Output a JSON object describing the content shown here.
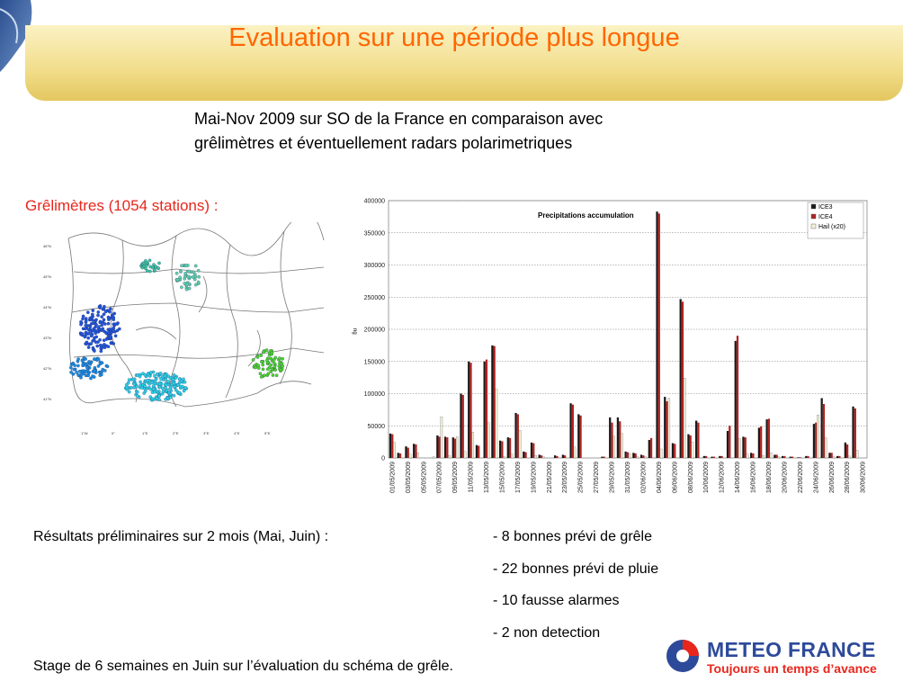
{
  "slide": {
    "title": "Evaluation sur une période plus longue",
    "subtitle_line1": "Mai-Nov 2009 sur SO de la France en comparaison avec",
    "subtitle_line2": "grêlimètres et éventuellement radars polarimetriques",
    "stations_label": "Grêlimètres (1054 stations) :",
    "results_label": "Résultats préliminaires sur 2 mois (Mai, Juin) :",
    "results": [
      "- 8 bonnes prévi de grêle",
      "- 22 bonnes prévi de pluie",
      "- 10 fausse alarmes",
      "- 2 non detection"
    ],
    "stage_text": "Stage de 6 semaines en Juin sur l’évaluation du schéma de grêle."
  },
  "logo": {
    "name": "METEO FRANCE",
    "tagline": "Toujours un temps d’avance",
    "colors": {
      "blue": "#2d4a9a",
      "red": "#e8261c"
    }
  },
  "map": {
    "lat_labels": [
      "46°N",
      "45°N",
      "44°N",
      "43°N",
      "42°N",
      "41°N"
    ],
    "lon_labels": [
      "1°W",
      "0°",
      "1°E",
      "2°E",
      "3°E",
      "4°E",
      "5°E"
    ],
    "clusters": [
      {
        "name": "north",
        "color": "#3cc8a0"
      },
      {
        "name": "northeast",
        "color": "#5fd4a8"
      },
      {
        "name": "west",
        "color": "#1f56d8"
      },
      {
        "name": "southwest",
        "color": "#1a8ee0"
      },
      {
        "name": "south",
        "color": "#29d3e6"
      },
      {
        "name": "east",
        "color": "#4cd62a"
      }
    ]
  },
  "chart_data": {
    "type": "bar",
    "title": "Precipitations accumulation",
    "ylabel": "ng",
    "ylim": [
      0,
      400000
    ],
    "yticks": [
      0,
      50000,
      100000,
      150000,
      200000,
      250000,
      300000,
      350000,
      400000
    ],
    "legend_position": "top-right",
    "dates": [
      "01/05/2009",
      "02/05/2009",
      "03/05/2009",
      "04/05/2009",
      "05/05/2009",
      "06/05/2009",
      "07/05/2009",
      "08/05/2009",
      "09/05/2009",
      "10/05/2009",
      "11/05/2009",
      "12/05/2009",
      "13/05/2009",
      "14/05/2009",
      "15/05/2009",
      "16/05/2009",
      "17/05/2009",
      "18/05/2009",
      "19/05/2009",
      "20/05/2009",
      "21/05/2009",
      "22/05/2009",
      "23/05/2009",
      "24/05/2009",
      "25/05/2009",
      "26/05/2009",
      "27/05/2009",
      "28/05/2009",
      "29/05/2009",
      "30/05/2009",
      "31/05/2009",
      "01/06/2009",
      "02/06/2009",
      "03/06/2009",
      "04/06/2009",
      "05/06/2009",
      "06/06/2009",
      "07/06/2009",
      "08/06/2009",
      "09/06/2009",
      "10/06/2009",
      "11/06/2009",
      "12/06/2009",
      "13/06/2009",
      "14/06/2009",
      "15/06/2009",
      "16/06/2009",
      "17/06/2009",
      "18/06/2009",
      "19/06/2009",
      "20/06/2009",
      "21/06/2009",
      "22/06/2009",
      "23/06/2009",
      "24/06/2009",
      "25/06/2009",
      "26/06/2009",
      "27/06/2009",
      "28/06/2009",
      "29/06/2009",
      "30/06/2009"
    ],
    "x_tick_labels": [
      "01/05/2009",
      "03/05/2009",
      "05/05/2009",
      "07/05/2009",
      "09/05/2009",
      "11/05/2009",
      "13/05/2009",
      "15/05/2009",
      "17/05/2009",
      "19/05/2009",
      "21/05/2009",
      "23/05/2009",
      "25/05/2009",
      "27/05/2009",
      "29/05/2009",
      "31/05/2009",
      "02/06/2009",
      "04/06/2009",
      "06/06/2009",
      "08/06/2009",
      "10/06/2009",
      "12/06/2009",
      "14/06/2009",
      "16/06/2009",
      "18/06/2009",
      "20/06/2009",
      "22/06/2009",
      "24/06/2009",
      "26/06/2009",
      "28/06/2009",
      "30/06/2009"
    ],
    "series": [
      {
        "name": "ICE3",
        "color": "#1a1a1a",
        "values": [
          38000,
          8000,
          18000,
          22000,
          0,
          0,
          35000,
          33000,
          32000,
          100000,
          150000,
          20000,
          150000,
          175000,
          27000,
          32000,
          70000,
          10000,
          24000,
          5000,
          0,
          4000,
          5000,
          85000,
          68000,
          0,
          0,
          2000,
          63000,
          63000,
          10000,
          8000,
          5000,
          28000,
          383000,
          95000,
          23000,
          247000,
          37000,
          58000,
          3000,
          2000,
          3000,
          42000,
          182000,
          33000,
          8000,
          47000,
          60000,
          5000,
          3000,
          2000,
          1000,
          3000,
          53000,
          93000,
          8000,
          3000,
          24000,
          80000,
          0
        ]
      },
      {
        "name": "ICE4",
        "color": "#b22222",
        "values": [
          37000,
          7000,
          16000,
          21000,
          0,
          0,
          33000,
          32000,
          30000,
          98000,
          148000,
          19000,
          153000,
          174000,
          26000,
          31000,
          68000,
          9000,
          23000,
          4000,
          0,
          3000,
          4000,
          83000,
          66000,
          0,
          0,
          2000,
          55000,
          57000,
          9000,
          7000,
          4000,
          31000,
          380000,
          88000,
          22000,
          243000,
          35000,
          55000,
          3000,
          2000,
          3000,
          50000,
          190000,
          32000,
          7000,
          49000,
          61000,
          5000,
          3000,
          2000,
          1000,
          3000,
          55000,
          84000,
          8000,
          3000,
          21000,
          77000,
          0
        ]
      },
      {
        "name": "Hail (x20)",
        "color": "#f3f0d8",
        "values": [
          24000,
          0,
          6000,
          8000,
          0,
          2000,
          64000,
          4000,
          33000,
          10000,
          40000,
          0,
          55000,
          107000,
          2000,
          6000,
          43000,
          0,
          4000,
          2000,
          0,
          0,
          0,
          17000,
          0,
          0,
          0,
          0,
          34000,
          38000,
          7000,
          2000,
          2000,
          0,
          14000,
          93000,
          0,
          124000,
          25000,
          0,
          0,
          0,
          0,
          0,
          30000,
          6000,
          0,
          4000,
          8000,
          2000,
          0,
          0,
          0,
          0,
          67000,
          31000,
          2000,
          0,
          3000,
          12000,
          0
        ]
      }
    ]
  }
}
